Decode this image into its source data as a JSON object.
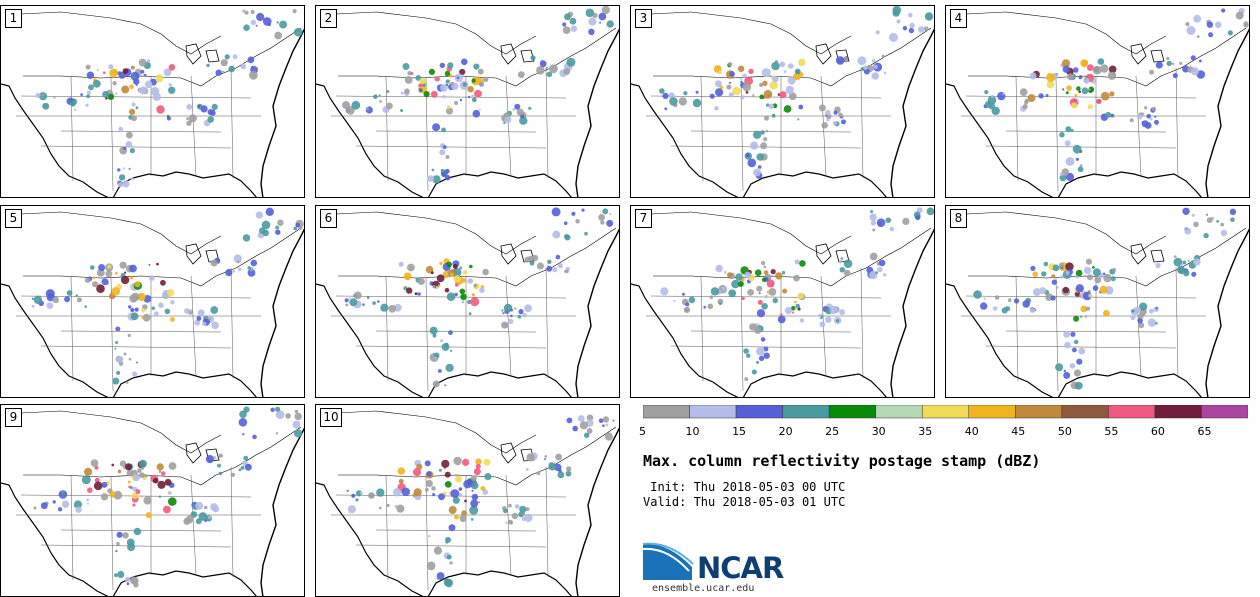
{
  "panels": [
    {
      "label": "1"
    },
    {
      "label": "2"
    },
    {
      "label": "3"
    },
    {
      "label": "4"
    },
    {
      "label": "5"
    },
    {
      "label": "6"
    },
    {
      "label": "7"
    },
    {
      "label": "8"
    },
    {
      "label": "9"
    },
    {
      "label": "10"
    }
  ],
  "colorbar": {
    "ticks": [
      "5",
      "10",
      "15",
      "20",
      "25",
      "30",
      "35",
      "40",
      "45",
      "50",
      "55",
      "60",
      "65"
    ],
    "colors": [
      "#a0a0a0",
      "#b5bce8",
      "#5560d8",
      "#4a9aa0",
      "#0a8a0a",
      "#b4d8b4",
      "#f0dc5a",
      "#f0b41e",
      "#c08a3c",
      "#8c5a3c",
      "#f05a82",
      "#6e1e3c",
      "#aa46a0"
    ]
  },
  "title": "Max. column reflectivity postage stamp (dBZ)",
  "init_line": " Init: Thu 2018-05-03 00 UTC",
  "valid_line": "Valid: Thu 2018-05-03 01 UTC",
  "logo": {
    "text": "NCAR",
    "site": "ensemble.ucar.edu"
  }
}
